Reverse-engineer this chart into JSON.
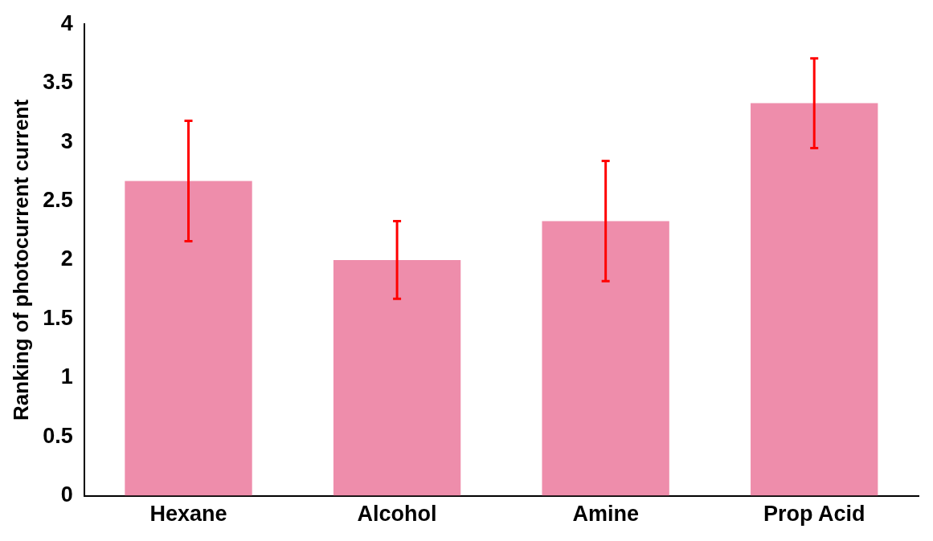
{
  "chart_data": {
    "type": "bar",
    "ylabel": "Ranking of photocurrent current",
    "categories": [
      "Hexane",
      "Alcohol",
      "Amine",
      "Prop Acid"
    ],
    "values": [
      2.67,
      2.0,
      2.33,
      3.33
    ],
    "errors": [
      0.51,
      0.33,
      0.51,
      0.38
    ],
    "color": "#ee8dab",
    "ylim": [
      0,
      4
    ],
    "yticks": [
      0,
      0.5,
      1,
      1.5,
      2,
      2.5,
      3,
      3.5,
      4
    ],
    "grid": false,
    "legend": false
  }
}
